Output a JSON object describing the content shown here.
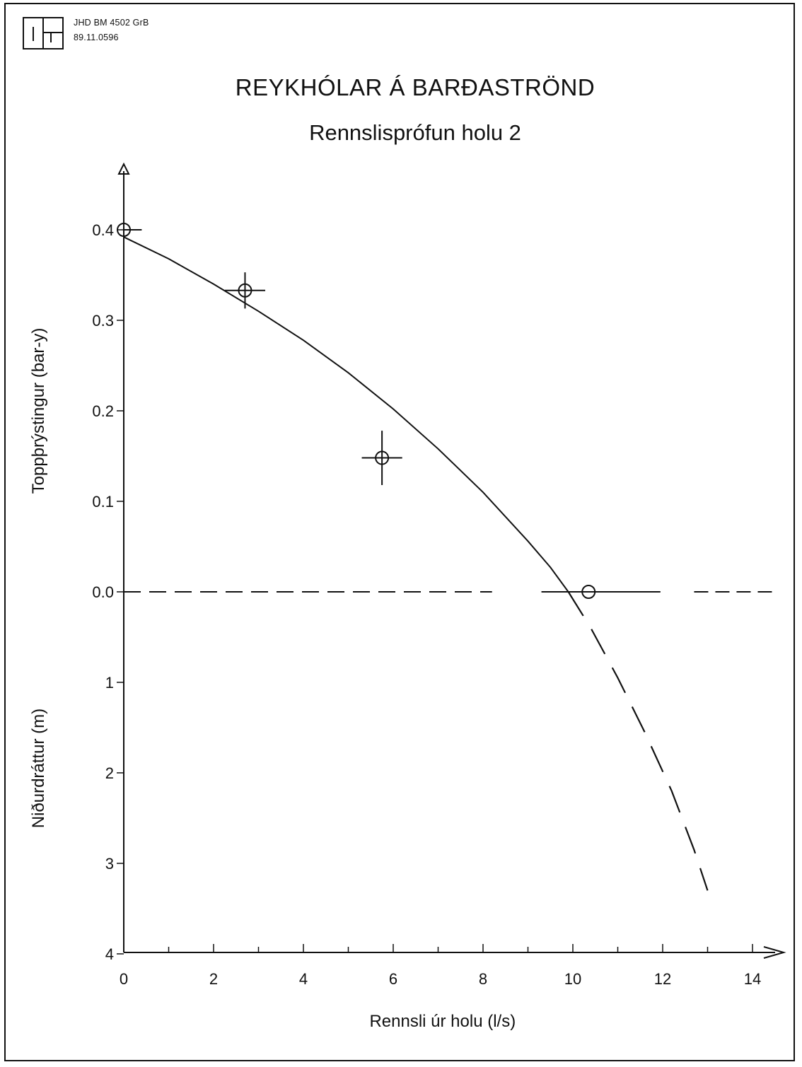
{
  "header": {
    "doc_id": "JHD BM 4502 GrB",
    "doc_date": "89.11.0596"
  },
  "chart_data": {
    "type": "scatter",
    "title": "REYKHÓLAR Á BARÐASTRÖND",
    "subtitle": "Rennslisprófun holu 2",
    "xlabel": "Rennsli úr holu (l/s)",
    "ylabel_upper": "Toppþrýstingur (bar-y)",
    "ylabel_lower": "Niðurdráttur (m)",
    "x_ticks": [
      "0",
      "2",
      "4",
      "6",
      "8",
      "10",
      "12",
      "14"
    ],
    "y_upper_ticks": [
      "0.4",
      "0.3",
      "0.2",
      "0.1",
      "0.0"
    ],
    "y_lower_ticks": [
      "1",
      "2",
      "3",
      "4"
    ],
    "xlim": [
      0,
      14.4
    ],
    "y_upper_lim": [
      0,
      0.45
    ],
    "y_lower_lim": [
      0,
      4
    ],
    "grid": false,
    "points": [
      {
        "x": 0.0,
        "y": 0.4,
        "xerr": [
          0.0,
          0.4
        ],
        "yerr": [
          0,
          0
        ]
      },
      {
        "x": 2.7,
        "y": 0.333,
        "xerr": [
          0.45,
          0.45
        ],
        "yerr": [
          0.02,
          0.02
        ]
      },
      {
        "x": 5.75,
        "y": 0.148,
        "xerr": [
          0.45,
          0.45
        ],
        "yerr": [
          0.03,
          0.03
        ]
      },
      {
        "x": 10.35,
        "y": 0.0,
        "xerr": [
          1.05,
          1.6
        ],
        "yerr": [
          0,
          0
        ]
      }
    ],
    "reference_line": {
      "y": 0.0,
      "style": "dashed"
    },
    "fit_curve_solid": {
      "x": [
        0,
        1,
        2,
        3,
        4,
        5,
        6,
        7,
        8,
        9,
        9.5,
        9.9
      ],
      "y": [
        0.392,
        0.368,
        0.34,
        0.31,
        0.278,
        0.242,
        0.202,
        0.158,
        0.11,
        0.056,
        0.027,
        0.0
      ]
    },
    "fit_curve_dashed_drawdown_m": {
      "x": [
        9.9,
        10.4,
        11.0,
        11.6,
        12.2,
        12.7,
        13.0
      ],
      "y": [
        0.0,
        0.4,
        0.95,
        1.55,
        2.2,
        2.85,
        3.3
      ]
    }
  }
}
